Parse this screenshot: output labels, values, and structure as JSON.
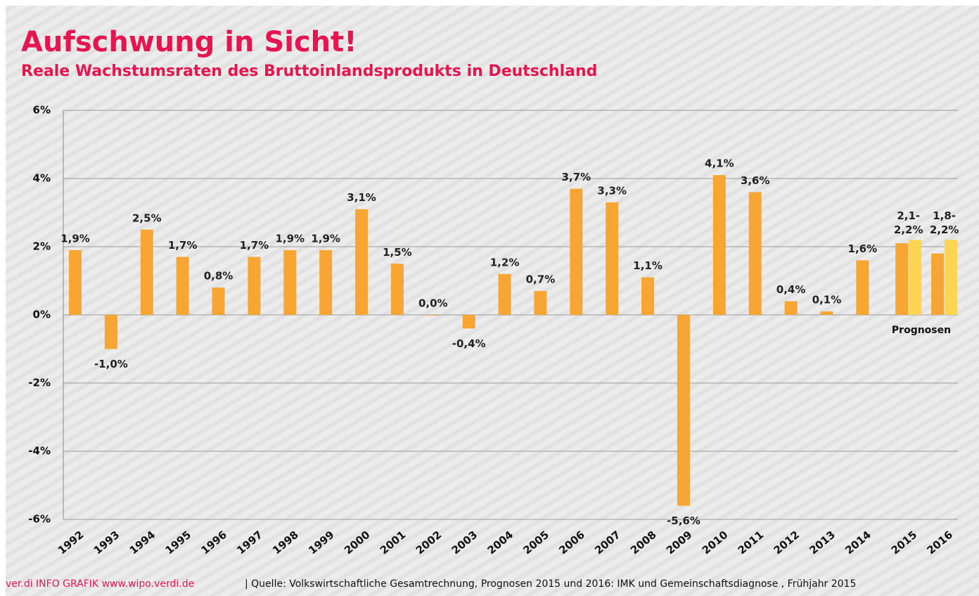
{
  "chart_data": {
    "type": "bar",
    "title": "Aufschwung in Sicht!",
    "subtitle": "Reale Wachstumsraten des Bruttoinlandsprodukts in Deutschland",
    "categories": [
      "1992",
      "1993",
      "1994",
      "1995",
      "1996",
      "1997",
      "1998",
      "1999",
      "2000",
      "2001",
      "2002",
      "2003",
      "2004",
      "2005",
      "2006",
      "2007",
      "2008",
      "2009",
      "2010",
      "2011",
      "2012",
      "2013",
      "2014",
      "2015",
      "2016"
    ],
    "series": [
      {
        "color": "#f7a633",
        "values": [
          1.9,
          -1.0,
          2.5,
          1.7,
          0.8,
          1.7,
          1.9,
          1.9,
          3.1,
          1.5,
          0.0,
          -0.4,
          1.2,
          0.7,
          3.7,
          3.3,
          1.1,
          -5.6,
          4.1,
          3.6,
          0.4,
          0.1,
          1.6,
          2.1,
          1.8
        ],
        "value_labels": [
          "1,9%",
          "-1,0%",
          "2,5%",
          "1,7%",
          "0,8%",
          "1,7%",
          "1,9%",
          "1,9%",
          "3,1%",
          "1,5%",
          "0,0%",
          "-0,4%",
          "1,2%",
          "0,7%",
          "3,7%",
          "3,3%",
          "1,1%",
          "-5,6%",
          "4,1%",
          "3,6%",
          "0,4%",
          "0,1%",
          "1,6%",
          "2,1-",
          "1,8-"
        ]
      },
      {
        "color": "#fdd552",
        "values": [
          null,
          null,
          null,
          null,
          null,
          null,
          null,
          null,
          null,
          null,
          null,
          null,
          null,
          null,
          null,
          null,
          null,
          null,
          null,
          null,
          null,
          null,
          null,
          2.2,
          2.2
        ],
        "value_labels": [
          null,
          null,
          null,
          null,
          null,
          null,
          null,
          null,
          null,
          null,
          null,
          null,
          null,
          null,
          null,
          null,
          null,
          null,
          null,
          null,
          null,
          null,
          null,
          "2,2%",
          "2,2%"
        ]
      }
    ],
    "annotation": "Prognosen",
    "ylim": [
      -6,
      6
    ],
    "yticks": [
      {
        "value": -6,
        "label": "-6%"
      },
      {
        "value": -4,
        "label": "-4%"
      },
      {
        "value": -2,
        "label": "-2%"
      },
      {
        "value": 0,
        "label": "0%"
      },
      {
        "value": 2,
        "label": "2%"
      },
      {
        "value": 4,
        "label": "4%"
      },
      {
        "value": 6,
        "label": "6%"
      }
    ],
    "grid": true,
    "footer_source": "ver.di INFO GRAFIK www.wipo.verdi.de",
    "footer_note": "| Quelle: Volkswirtschaftliche Gesamtrechnung, Prognosen 2015 und  2016: IMK und Gemeinschaftsdiagnose , Frühjahr 2015"
  }
}
